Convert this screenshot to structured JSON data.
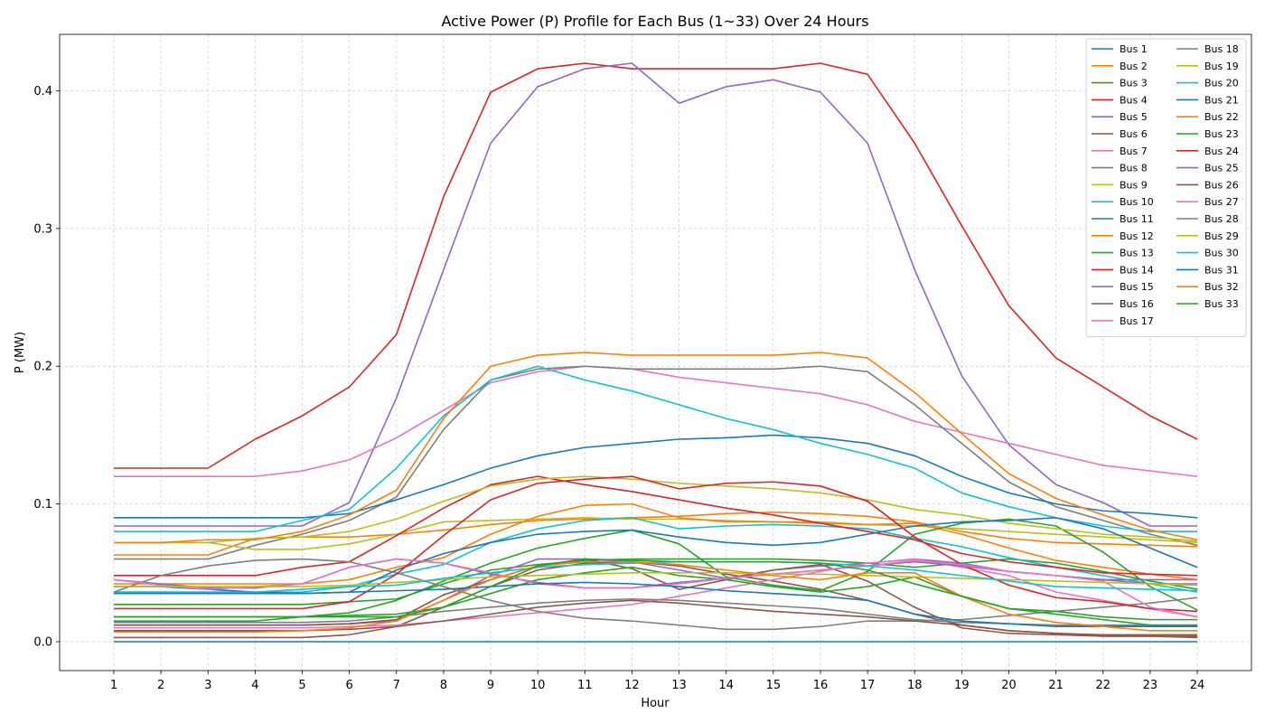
{
  "chart_data": {
    "type": "line",
    "title": "Active Power (P) Profile for Each Bus (1~33) Over 24 Hours",
    "xlabel": "Hour",
    "ylabel": "P (MW)",
    "x": [
      1,
      2,
      3,
      4,
      5,
      6,
      7,
      8,
      9,
      10,
      11,
      12,
      13,
      14,
      15,
      16,
      17,
      18,
      19,
      20,
      21,
      22,
      23,
      24
    ],
    "x_ticks": [
      "1",
      "2",
      "3",
      "4",
      "5",
      "6",
      "7",
      "8",
      "9",
      "10",
      "11",
      "12",
      "13",
      "14",
      "15",
      "16",
      "17",
      "18",
      "19",
      "20",
      "21",
      "22",
      "23",
      "24"
    ],
    "y_ticks": [
      {
        "value": 0.0,
        "label": "0.0"
      },
      {
        "value": 0.1,
        "label": "0.1"
      },
      {
        "value": 0.2,
        "label": "0.2"
      },
      {
        "value": 0.3,
        "label": "0.3"
      },
      {
        "value": 0.4,
        "label": "0.4"
      }
    ],
    "xlim": [
      -0.15,
      25.15
    ],
    "ylim": [
      -0.021,
      0.441
    ],
    "grid": true,
    "legend_position": "top-right",
    "legend_columns": 2,
    "series": [
      {
        "name": "Bus 1",
        "color": "#1f77b4",
        "values": [
          0,
          0,
          0,
          0,
          0,
          0,
          0,
          0,
          0,
          0,
          0,
          0,
          0,
          0,
          0,
          0,
          0,
          0,
          0,
          0,
          0,
          0,
          0,
          0
        ]
      },
      {
        "name": "Bus 2",
        "color": "#ff7f0e",
        "values": [
          0.063,
          0.063,
          0.063,
          0.075,
          0.076,
          0.076,
          0.078,
          0.081,
          0.085,
          0.088,
          0.089,
          0.09,
          0.091,
          0.093,
          0.094,
          0.093,
          0.091,
          0.087,
          0.08,
          0.075,
          0.072,
          0.071,
          0.07,
          0.069
        ]
      },
      {
        "name": "Bus 3",
        "color": "#2ca02c",
        "values": [
          0.027,
          0.027,
          0.027,
          0.027,
          0.027,
          0.029,
          0.031,
          0.042,
          0.052,
          0.056,
          0.059,
          0.06,
          0.06,
          0.06,
          0.06,
          0.059,
          0.057,
          0.054,
          0.057,
          0.06,
          0.057,
          0.051,
          0.044,
          0.038
        ]
      },
      {
        "name": "Bus 4",
        "color": "#d62728",
        "values": [
          0.126,
          0.126,
          0.126,
          0.147,
          0.164,
          0.185,
          0.223,
          0.323,
          0.399,
          0.416,
          0.42,
          0.416,
          0.416,
          0.416,
          0.416,
          0.42,
          0.412,
          0.362,
          0.302,
          0.244,
          0.206,
          0.185,
          0.164,
          0.147
        ]
      },
      {
        "name": "Bus 5",
        "color": "#9467bd",
        "values": [
          0.084,
          0.084,
          0.084,
          0.084,
          0.084,
          0.101,
          0.177,
          0.27,
          0.362,
          0.403,
          0.416,
          0.42,
          0.391,
          0.403,
          0.408,
          0.399,
          0.362,
          0.27,
          0.193,
          0.143,
          0.114,
          0.101,
          0.084,
          0.084
        ]
      },
      {
        "name": "Bus 6",
        "color": "#8c564b",
        "values": [
          0.003,
          0.003,
          0.003,
          0.003,
          0.003,
          0.005,
          0.011,
          0.025,
          0.04,
          0.052,
          0.057,
          0.058,
          0.055,
          0.049,
          0.044,
          0.038,
          0.03,
          0.02,
          0.012,
          0.008,
          0.006,
          0.004,
          0.004,
          0.003
        ]
      },
      {
        "name": "Bus 7",
        "color": "#e377c2",
        "values": [
          0.12,
          0.12,
          0.12,
          0.12,
          0.124,
          0.132,
          0.148,
          0.168,
          0.188,
          0.196,
          0.2,
          0.198,
          0.192,
          0.188,
          0.184,
          0.18,
          0.172,
          0.16,
          0.152,
          0.144,
          0.136,
          0.128,
          0.124,
          0.12
        ]
      },
      {
        "name": "Bus 8",
        "color": "#7f7f7f",
        "values": [
          0.06,
          0.06,
          0.06,
          0.07,
          0.078,
          0.088,
          0.105,
          0.154,
          0.19,
          0.198,
          0.2,
          0.198,
          0.198,
          0.198,
          0.198,
          0.2,
          0.196,
          0.172,
          0.144,
          0.116,
          0.098,
          0.088,
          0.078,
          0.07
        ]
      },
      {
        "name": "Bus 9",
        "color": "#bcbd22",
        "values": [
          0.072,
          0.072,
          0.072,
          0.067,
          0.067,
          0.071,
          0.078,
          0.087,
          0.088,
          0.089,
          0.09,
          0.089,
          0.089,
          0.088,
          0.087,
          0.087,
          0.085,
          0.084,
          0.082,
          0.08,
          0.078,
          0.076,
          0.074,
          0.072
        ]
      },
      {
        "name": "Bus 10",
        "color": "#17becf",
        "values": [
          0.036,
          0.036,
          0.036,
          0.036,
          0.036,
          0.04,
          0.049,
          0.056,
          0.072,
          0.082,
          0.088,
          0.09,
          0.082,
          0.084,
          0.085,
          0.084,
          0.082,
          0.075,
          0.069,
          0.061,
          0.054,
          0.048,
          0.042,
          0.036
        ]
      },
      {
        "name": "Bus 11",
        "color": "#1f77b4",
        "values": [
          0.09,
          0.09,
          0.09,
          0.09,
          0.09,
          0.093,
          0.103,
          0.114,
          0.126,
          0.135,
          0.141,
          0.144,
          0.147,
          0.148,
          0.15,
          0.148,
          0.144,
          0.135,
          0.12,
          0.108,
          0.1,
          0.095,
          0.093,
          0.09
        ]
      },
      {
        "name": "Bus 12",
        "color": "#ff7f0e",
        "values": [
          0.042,
          0.042,
          0.042,
          0.042,
          0.042,
          0.045,
          0.054,
          0.061,
          0.078,
          0.091,
          0.099,
          0.1,
          0.09,
          0.087,
          0.087,
          0.086,
          0.085,
          0.086,
          0.078,
          0.068,
          0.059,
          0.054,
          0.049,
          0.045
        ]
      },
      {
        "name": "Bus 13",
        "color": "#2ca02c",
        "values": [
          0.018,
          0.018,
          0.018,
          0.018,
          0.018,
          0.021,
          0.03,
          0.044,
          0.057,
          0.068,
          0.075,
          0.081,
          0.071,
          0.047,
          0.041,
          0.037,
          0.051,
          0.078,
          0.086,
          0.089,
          0.084,
          0.065,
          0.04,
          0.023
        ]
      },
      {
        "name": "Bus 14",
        "color": "#d62728",
        "values": [
          0.048,
          0.048,
          0.048,
          0.048,
          0.054,
          0.058,
          0.077,
          0.097,
          0.114,
          0.12,
          0.114,
          0.109,
          0.103,
          0.097,
          0.092,
          0.086,
          0.08,
          0.074,
          0.064,
          0.058,
          0.054,
          0.05,
          0.049,
          0.048
        ]
      },
      {
        "name": "Bus 15",
        "color": "#9467bd",
        "values": [
          0.012,
          0.012,
          0.012,
          0.012,
          0.012,
          0.013,
          0.015,
          0.03,
          0.048,
          0.06,
          0.06,
          0.058,
          0.052,
          0.046,
          0.052,
          0.055,
          0.057,
          0.06,
          0.057,
          0.051,
          0.048,
          0.045,
          0.042,
          0.042
        ]
      },
      {
        "name": "Bus 16",
        "color": "#8c564b",
        "values": [
          0.012,
          0.012,
          0.012,
          0.012,
          0.012,
          0.013,
          0.016,
          0.034,
          0.045,
          0.055,
          0.06,
          0.053,
          0.038,
          0.045,
          0.052,
          0.056,
          0.044,
          0.025,
          0.01,
          0.006,
          0.005,
          0.004,
          0.004,
          0.004
        ]
      },
      {
        "name": "Bus 17",
        "color": "#e377c2",
        "values": [
          0.01,
          0.01,
          0.01,
          0.01,
          0.01,
          0.011,
          0.012,
          0.015,
          0.018,
          0.021,
          0.024,
          0.027,
          0.033,
          0.039,
          0.045,
          0.051,
          0.057,
          0.06,
          0.054,
          0.048,
          0.036,
          0.03,
          0.024,
          0.018
        ]
      },
      {
        "name": "Bus 18",
        "color": "#7f7f7f",
        "values": [
          0.036,
          0.048,
          0.055,
          0.059,
          0.06,
          0.058,
          0.05,
          0.04,
          0.03,
          0.022,
          0.017,
          0.015,
          0.012,
          0.009,
          0.009,
          0.011,
          0.015,
          0.015,
          0.016,
          0.019,
          0.022,
          0.025,
          0.028,
          0.032
        ]
      },
      {
        "name": "Bus 19",
        "color": "#bcbd22",
        "values": [
          0.072,
          0.072,
          0.072,
          0.075,
          0.076,
          0.08,
          0.089,
          0.102,
          0.113,
          0.118,
          0.12,
          0.118,
          0.115,
          0.113,
          0.111,
          0.108,
          0.103,
          0.096,
          0.092,
          0.086,
          0.082,
          0.078,
          0.076,
          0.073
        ]
      },
      {
        "name": "Bus 20",
        "color": "#17becf",
        "values": [
          0.08,
          0.08,
          0.08,
          0.08,
          0.088,
          0.096,
          0.126,
          0.164,
          0.19,
          0.2,
          0.19,
          0.182,
          0.172,
          0.162,
          0.154,
          0.144,
          0.136,
          0.126,
          0.108,
          0.098,
          0.09,
          0.084,
          0.08,
          0.08
        ]
      },
      {
        "name": "Bus 21",
        "color": "#1f77b4",
        "values": [
          0.04,
          0.04,
          0.038,
          0.036,
          0.035,
          0.036,
          0.052,
          0.064,
          0.072,
          0.078,
          0.08,
          0.081,
          0.076,
          0.072,
          0.07,
          0.072,
          0.078,
          0.084,
          0.087,
          0.088,
          0.09,
          0.082,
          0.068,
          0.054
        ]
      },
      {
        "name": "Bus 22",
        "color": "#ff7f0e",
        "values": [
          0.072,
          0.072,
          0.074,
          0.074,
          0.08,
          0.092,
          0.11,
          0.162,
          0.2,
          0.208,
          0.21,
          0.208,
          0.208,
          0.208,
          0.208,
          0.21,
          0.206,
          0.181,
          0.151,
          0.122,
          0.104,
          0.092,
          0.081,
          0.074
        ]
      },
      {
        "name": "Bus 23",
        "color": "#2ca02c",
        "values": [
          0.015,
          0.015,
          0.015,
          0.015,
          0.018,
          0.019,
          0.02,
          0.025,
          0.035,
          0.045,
          0.05,
          0.054,
          0.048,
          0.045,
          0.04,
          0.036,
          0.04,
          0.047,
          0.033,
          0.024,
          0.022,
          0.018,
          0.016,
          0.016
        ]
      },
      {
        "name": "Bus 24",
        "color": "#d62728",
        "values": [
          0.024,
          0.024,
          0.024,
          0.024,
          0.024,
          0.029,
          0.049,
          0.077,
          0.103,
          0.115,
          0.118,
          0.12,
          0.111,
          0.115,
          0.116,
          0.113,
          0.102,
          0.076,
          0.056,
          0.041,
          0.032,
          0.029,
          0.024,
          0.022
        ]
      },
      {
        "name": "Bus 25",
        "color": "#9467bd",
        "values": [
          0.045,
          0.042,
          0.039,
          0.039,
          0.042,
          0.054,
          0.06,
          0.057,
          0.049,
          0.043,
          0.039,
          0.039,
          0.043,
          0.046,
          0.049,
          0.052,
          0.055,
          0.058,
          0.055,
          0.051,
          0.048,
          0.045,
          0.045,
          0.045
        ]
      },
      {
        "name": "Bus 26",
        "color": "#8c564b",
        "values": [
          0.008,
          0.008,
          0.008,
          0.008,
          0.008,
          0.009,
          0.011,
          0.015,
          0.02,
          0.025,
          0.028,
          0.03,
          0.028,
          0.025,
          0.022,
          0.02,
          0.018,
          0.015,
          0.012,
          0.008,
          0.006,
          0.005,
          0.005,
          0.005
        ]
      },
      {
        "name": "Bus 27",
        "color": "#e377c2",
        "values": [
          0.045,
          0.041,
          0.038,
          0.04,
          0.042,
          0.054,
          0.06,
          0.057,
          0.05,
          0.042,
          0.039,
          0.039,
          0.042,
          0.046,
          0.049,
          0.052,
          0.055,
          0.059,
          0.056,
          0.051,
          0.048,
          0.044,
          0.025,
          0.018
        ]
      },
      {
        "name": "Bus 28",
        "color": "#7f7f7f",
        "values": [
          0.014,
          0.014,
          0.014,
          0.014,
          0.014,
          0.015,
          0.018,
          0.022,
          0.025,
          0.028,
          0.03,
          0.031,
          0.03,
          0.028,
          0.026,
          0.024,
          0.02,
          0.016,
          0.014,
          0.013,
          0.012,
          0.012,
          0.012,
          0.012
        ]
      },
      {
        "name": "Bus 29",
        "color": "#bcbd22",
        "values": [
          0.04,
          0.04,
          0.04,
          0.04,
          0.04,
          0.041,
          0.043,
          0.045,
          0.047,
          0.048,
          0.049,
          0.05,
          0.05,
          0.05,
          0.049,
          0.049,
          0.048,
          0.047,
          0.046,
          0.045,
          0.044,
          0.043,
          0.042,
          0.041
        ]
      },
      {
        "name": "Bus 30",
        "color": "#17becf",
        "values": [
          0.036,
          0.036,
          0.036,
          0.036,
          0.038,
          0.04,
          0.041,
          0.046,
          0.05,
          0.054,
          0.056,
          0.057,
          0.058,
          0.058,
          0.058,
          0.057,
          0.055,
          0.052,
          0.048,
          0.044,
          0.04,
          0.039,
          0.038,
          0.037
        ]
      },
      {
        "name": "Bus 31",
        "color": "#1f77b4",
        "values": [
          0.035,
          0.035,
          0.035,
          0.035,
          0.035,
          0.036,
          0.037,
          0.038,
          0.04,
          0.042,
          0.043,
          0.042,
          0.04,
          0.037,
          0.035,
          0.033,
          0.03,
          0.02,
          0.015,
          0.013,
          0.011,
          0.011,
          0.011,
          0.011
        ]
      },
      {
        "name": "Bus 32",
        "color": "#ff7f0e",
        "values": [
          0.007,
          0.007,
          0.007,
          0.007,
          0.008,
          0.01,
          0.015,
          0.03,
          0.045,
          0.055,
          0.058,
          0.058,
          0.056,
          0.052,
          0.048,
          0.045,
          0.05,
          0.05,
          0.033,
          0.02,
          0.014,
          0.011,
          0.008,
          0.008
        ]
      },
      {
        "name": "Bus 33",
        "color": "#2ca02c",
        "values": [
          0.018,
          0.018,
          0.018,
          0.018,
          0.018,
          0.018,
          0.018,
          0.025,
          0.04,
          0.055,
          0.06,
          0.059,
          0.058,
          0.058,
          0.058,
          0.057,
          0.052,
          0.042,
          0.033,
          0.024,
          0.02,
          0.016,
          0.012,
          0.012
        ]
      }
    ]
  }
}
